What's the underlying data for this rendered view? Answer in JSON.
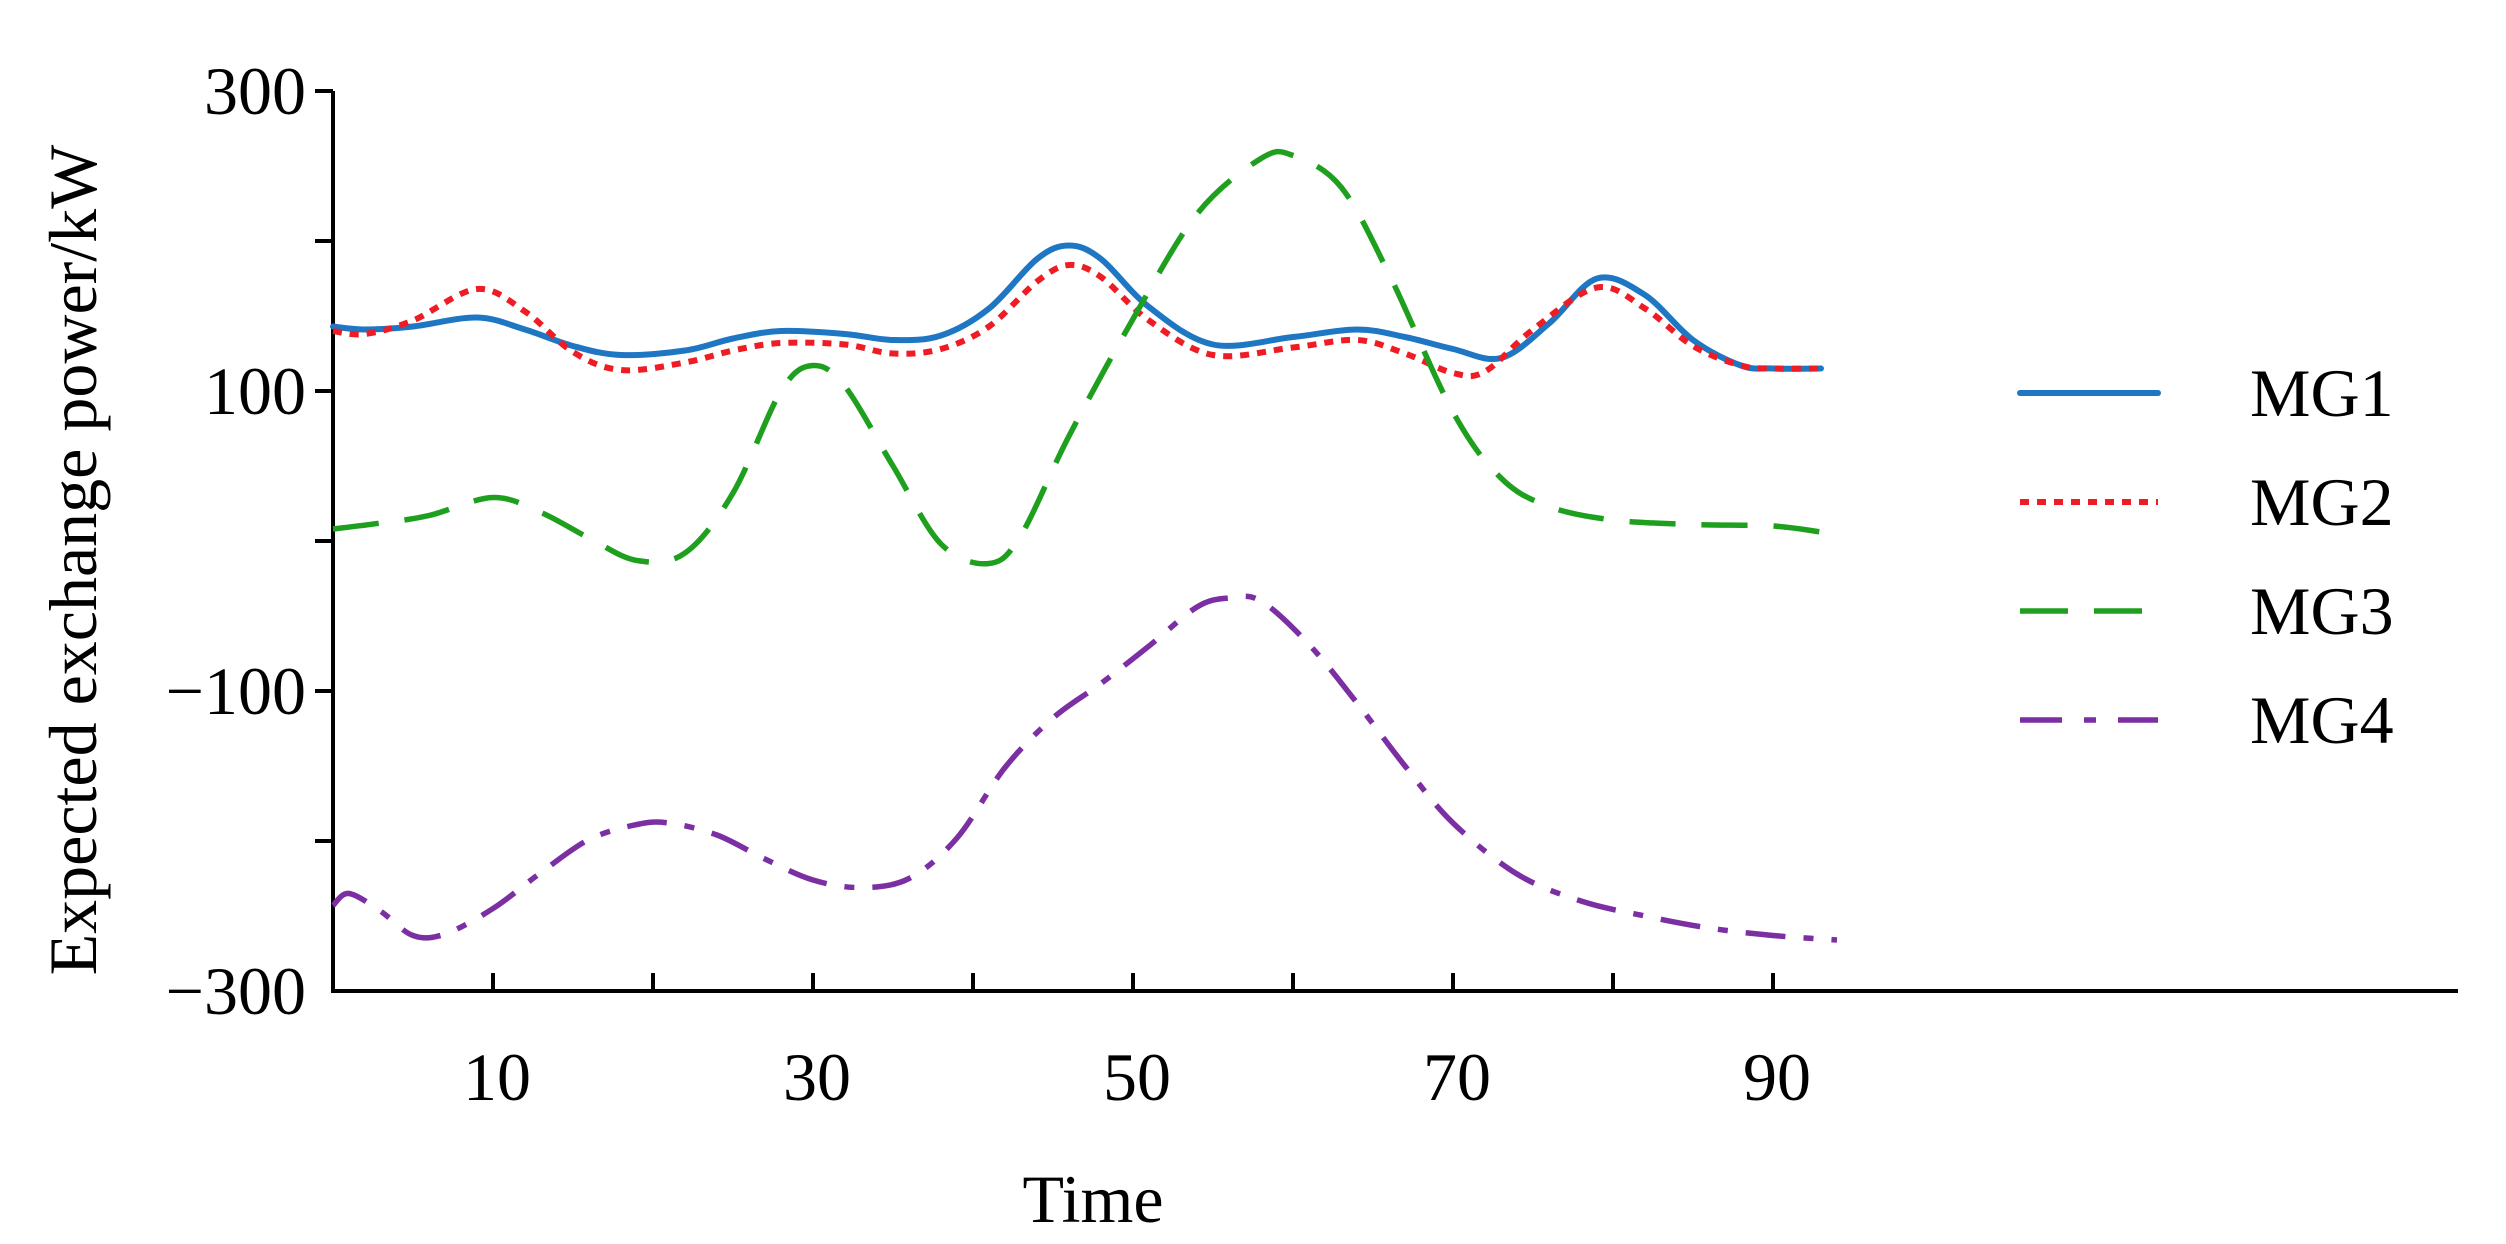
{
  "chart_data": {
    "type": "line",
    "title": "",
    "xlabel": "Time",
    "ylabel": "Expected exchange power/kW",
    "xlim": [
      0,
      134
    ],
    "ylim": [
      -300,
      300
    ],
    "xticks": [
      0,
      10,
      20,
      30,
      40,
      50,
      60,
      70,
      80,
      90
    ],
    "xtick_labels": [
      "10",
      "30",
      "50",
      "70",
      "90"
    ],
    "xtick_label_values": [
      10,
      30,
      50,
      70,
      90
    ],
    "yticks": [
      -300,
      -200,
      -100,
      0,
      100,
      200,
      300
    ],
    "ytick_labels": [
      "−300",
      "−100",
      "100",
      "300"
    ],
    "ytick_label_values": [
      -300,
      -100,
      100,
      300
    ],
    "legend_position": "right",
    "series": [
      {
        "name": "MG1",
        "color": "#1f77c4",
        "dash": "solid",
        "x": [
          0,
          2,
          5,
          9,
          12,
          15,
          18,
          22,
          25,
          28,
          32,
          35,
          38,
          41,
          44,
          46,
          48,
          51,
          55,
          60,
          64,
          67,
          70,
          73,
          76,
          79,
          82,
          85,
          88,
          90,
          93
        ],
        "y": [
          143,
          141,
          143,
          149,
          141,
          130,
          124,
          127,
          135,
          140,
          138,
          134,
          137,
          155,
          188,
          197,
          188,
          156,
          131,
          136,
          141,
          136,
          128,
          122,
          145,
          175,
          164,
          134,
          117,
          115,
          115
        ]
      },
      {
        "name": "MG2",
        "color": "#ee1c24",
        "dash": "dotted",
        "x": [
          0,
          2,
          5,
          9,
          12,
          15,
          18,
          22,
          25,
          28,
          32,
          35,
          38,
          41,
          44,
          46,
          48,
          51,
          55,
          60,
          64,
          67,
          70,
          72,
          75,
          79,
          82,
          85,
          88,
          90,
          93
        ],
        "y": [
          140,
          138,
          147,
          168,
          153,
          126,
          114,
          119,
          127,
          132,
          131,
          125,
          128,
          143,
          173,
          184,
          176,
          147,
          124,
          129,
          134,
          125,
          112,
          113,
          141,
          169,
          155,
          130,
          117,
          115,
          115
        ]
      },
      {
        "name": "MG3",
        "color": "#1ea01e",
        "dash": "dashed",
        "x": [
          0,
          3,
          6,
          10,
          13,
          16,
          19,
          22,
          25,
          28,
          30,
          32,
          35,
          38,
          41,
          43,
          46,
          50,
          54,
          58,
          60,
          63,
          66,
          70,
          73,
          76,
          80,
          85,
          90,
          93
        ],
        "y": [
          8,
          12,
          17,
          29,
          19,
          2,
          -13,
          -8,
          32,
          100,
          117,
          103,
          50,
          -2,
          -15,
          4,
          70,
          148,
          218,
          255,
          257,
          236,
          178,
          86,
          42,
          23,
          14,
          11,
          10,
          6
        ],
        "__x_note": "data units on the x axis"
      },
      {
        "name": "MG4",
        "color": "#7b2fa3",
        "dash": "dashdot",
        "x": [
          0,
          1,
          3,
          5,
          7,
          10,
          13,
          16,
          19,
          21,
          24,
          27,
          30,
          33,
          36,
          39,
          42,
          45,
          48,
          51,
          54,
          56,
          58,
          61,
          64,
          67,
          70,
          74,
          78,
          82,
          86,
          90,
          94
        ],
        "y": [
          -243,
          -235,
          -247,
          -263,
          -262,
          -245,
          -221,
          -199,
          -189,
          -188,
          -196,
          -212,
          -226,
          -231,
          -225,
          -198,
          -151,
          -118,
          -95,
          -70,
          -44,
          -38,
          -40,
          -69,
          -108,
          -150,
          -188,
          -222,
          -240,
          -250,
          -258,
          -263,
          -266
        ]
      }
    ]
  }
}
